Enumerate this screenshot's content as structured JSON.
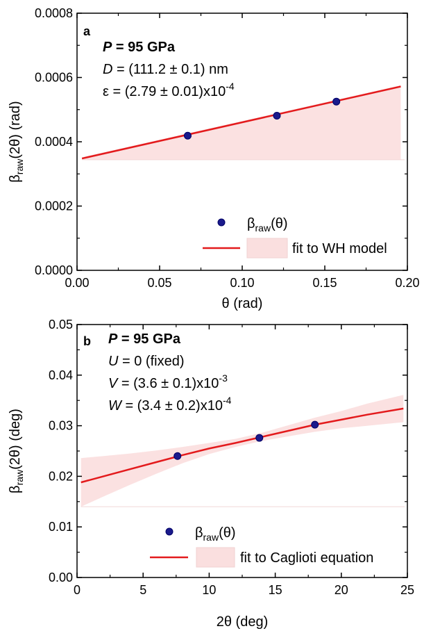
{
  "colors": {
    "fit_line": "#e31a1c",
    "band_fill": "#f7c9c9",
    "marker_fill": "#1a1a8c",
    "marker_edge": "#000066",
    "axis": "#000000"
  },
  "chart_data": [
    {
      "type": "scatter",
      "panel": "a",
      "xlabel": "θ (rad)",
      "ylabel": {
        "base": "β",
        "sub": "raw",
        "rest": "(2θ) (rad)"
      },
      "xlim": [
        0.0,
        0.2
      ],
      "ylim": [
        0.0,
        0.0008
      ],
      "x_ticks": [
        0.0,
        0.05,
        0.1,
        0.15,
        0.2
      ],
      "x_tick_labels": [
        "0.00",
        "0.05",
        "0.10",
        "0.15",
        "0.20"
      ],
      "y_ticks": [
        0.0,
        0.0002,
        0.0004,
        0.0006,
        0.0008
      ],
      "y_tick_labels": [
        "0.0000",
        "0.0002",
        "0.0004",
        "0.0006",
        "0.0008"
      ],
      "grid": false,
      "legend_position": "bottom-right",
      "points": {
        "x": [
          0.067,
          0.121,
          0.157
        ],
        "y": [
          0.000419,
          0.000481,
          0.000525
        ]
      },
      "fit": {
        "x": [
          0.003,
          0.196
        ],
        "y": [
          0.000348,
          0.000572
        ],
        "band_lower": [
          0.000344,
          0.000344
        ],
        "band_upper": [
          0.000352,
          0.000576
        ]
      },
      "annotations": [
        {
          "italic": "P",
          "text": " = 95 GPa",
          "sup": "",
          "bold": true
        },
        {
          "italic": "D",
          "text": " = (111.2 ± 0.1) nm",
          "sup": "",
          "bold": false
        },
        {
          "italic": "",
          "text": "ε = (2.79 ± 0.01)x10",
          "sup": "-4",
          "bold": false
        }
      ],
      "legend": [
        {
          "kind": "marker",
          "base": "β",
          "sub": "raw",
          "rest": "(θ)"
        },
        {
          "kind": "line-band",
          "base": "fit to WH model",
          "sub": "",
          "rest": ""
        }
      ]
    },
    {
      "type": "scatter",
      "panel": "b",
      "xlabel": "2θ (deg)",
      "ylabel": {
        "base": "β",
        "sub": "raw",
        "rest": "(2θ) (deg)"
      },
      "xlim": [
        0,
        25
      ],
      "ylim": [
        0.0,
        0.05
      ],
      "x_ticks": [
        0,
        5,
        10,
        15,
        20,
        25
      ],
      "x_tick_labels": [
        "0",
        "5",
        "10",
        "15",
        "20",
        "25"
      ],
      "y_ticks": [
        0.0,
        0.01,
        0.02,
        0.03,
        0.04,
        0.05
      ],
      "y_tick_labels": [
        "0.00",
        "0.01",
        "0.02",
        "0.03",
        "0.04",
        "0.05"
      ],
      "grid": false,
      "legend_position": "bottom-right",
      "points": {
        "x": [
          7.6,
          13.8,
          18.0
        ],
        "y": [
          0.024,
          0.0276,
          0.0302
        ]
      },
      "fit": {
        "x": [
          0.3,
          2,
          4,
          6,
          8,
          10,
          12,
          14,
          16,
          18,
          20,
          22,
          24.7
        ],
        "y": [
          0.0188,
          0.02,
          0.0214,
          0.0228,
          0.0242,
          0.0255,
          0.0266,
          0.0278,
          0.029,
          0.0302,
          0.0312,
          0.0322,
          0.0334
        ],
        "band_lower": [
          0.014,
          0.016,
          0.0183,
          0.0205,
          0.0226,
          0.0244,
          0.0258,
          0.027,
          0.0279,
          0.0288,
          0.0295,
          0.03,
          0.0307
        ],
        "band_upper": [
          0.0236,
          0.024,
          0.0245,
          0.0251,
          0.0258,
          0.0266,
          0.0274,
          0.0286,
          0.0301,
          0.0316,
          0.0329,
          0.0344,
          0.0361
        ]
      },
      "annotations": [
        {
          "italic": "P",
          "text": " = 95 GPa",
          "sup": "",
          "bold": true
        },
        {
          "italic": "U",
          "text": " = 0 (fixed)",
          "sup": "",
          "bold": false
        },
        {
          "italic": "V",
          "text": " = (3.6 ± 0.1)x10",
          "sup": "-3",
          "bold": false
        },
        {
          "italic": "W",
          "text": " = (3.4 ± 0.2)x10",
          "sup": "-4",
          "bold": false
        }
      ],
      "legend": [
        {
          "kind": "marker",
          "base": "β",
          "sub": "raw",
          "rest": "(θ)"
        },
        {
          "kind": "line-band",
          "base": "fit to Caglioti equation",
          "sub": "",
          "rest": ""
        }
      ]
    }
  ]
}
